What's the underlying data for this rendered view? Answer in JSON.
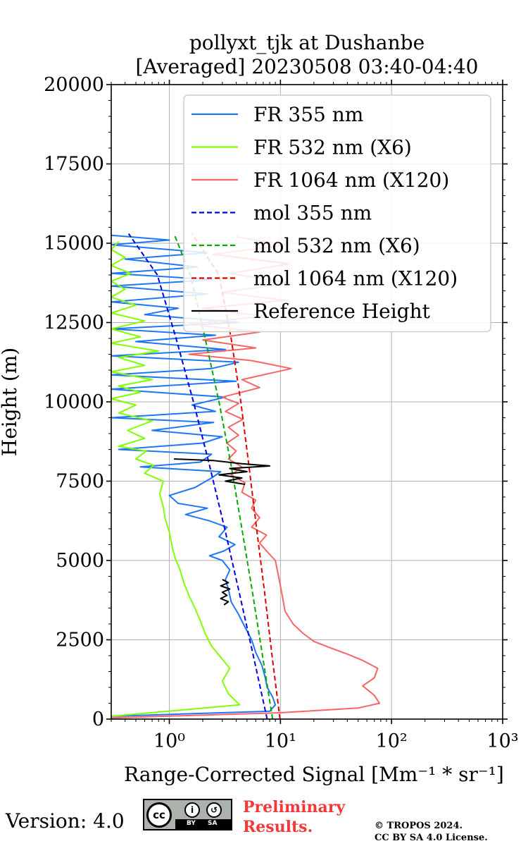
{
  "chart_data": {
    "type": "line",
    "title": [
      "pollyxt_tjk at Dushanbe",
      "[Averaged] 20230508 03:40-04:40"
    ],
    "xlabel": "Range-Corrected Signal [Mm⁻¹ * sr⁻¹]",
    "ylabel": "Height (m)",
    "xscale": "log",
    "xlim": [
      0.3,
      1000
    ],
    "ylim": [
      0,
      20000
    ],
    "xticks": [
      1,
      10,
      100,
      1000
    ],
    "xtick_labels": [
      "10⁰",
      "10¹",
      "10²",
      "10³"
    ],
    "yticks": [
      0,
      2500,
      5000,
      7500,
      10000,
      12500,
      15000,
      17500,
      20000
    ],
    "grid": true,
    "legend_position": "top-right",
    "series": [
      {
        "name": "FR 355 nm",
        "color": "#1f77f5",
        "style": "solid",
        "points": [
          [
            0.3,
            90
          ],
          [
            8,
            250
          ],
          [
            9,
            450
          ],
          [
            8.5,
            700
          ],
          [
            7.6,
            1000
          ],
          [
            7.3,
            1300
          ],
          [
            6.8,
            1700
          ],
          [
            6,
            2100
          ],
          [
            5.5,
            2500
          ],
          [
            4.8,
            2900
          ],
          [
            4.2,
            3300
          ],
          [
            3.6,
            3700
          ],
          [
            3.4,
            4100
          ],
          [
            3.2,
            4400
          ],
          [
            3.5,
            4700
          ],
          [
            3,
            5000
          ],
          [
            2.3,
            5150
          ],
          [
            3.1,
            5300
          ],
          [
            3.9,
            5500
          ],
          [
            2.8,
            5750
          ],
          [
            3.3,
            6050
          ],
          [
            2.3,
            6250
          ],
          [
            1.4,
            6450
          ],
          [
            2.2,
            6650
          ],
          [
            1.2,
            6800
          ],
          [
            1.0,
            7050
          ],
          [
            1.7,
            7300
          ],
          [
            2.4,
            7600
          ],
          [
            2.9,
            7800
          ],
          [
            0.55,
            7950
          ],
          [
            1.9,
            8100
          ],
          [
            2.4,
            8350
          ],
          [
            0.35,
            8500
          ],
          [
            2.0,
            8700
          ],
          [
            3.0,
            8900
          ],
          [
            0.7,
            9100
          ],
          [
            2.5,
            9350
          ],
          [
            0.3,
            9500
          ],
          [
            2.6,
            9700
          ],
          [
            1.6,
            9900
          ],
          [
            3.2,
            10150
          ],
          [
            0.3,
            10400
          ],
          [
            4.0,
            10650
          ],
          [
            0.3,
            10850
          ],
          [
            2.4,
            11050
          ],
          [
            4.2,
            11250
          ],
          [
            0.3,
            11450
          ],
          [
            3.2,
            11650
          ],
          [
            0.5,
            11900
          ],
          [
            2.6,
            12100
          ],
          [
            0.3,
            12300
          ],
          [
            4.2,
            12500
          ],
          [
            0.6,
            12750
          ],
          [
            1.2,
            12950
          ],
          [
            0.3,
            13150
          ],
          [
            2.2,
            13400
          ],
          [
            0.3,
            13650
          ],
          [
            2.5,
            13850
          ],
          [
            0.3,
            14050
          ],
          [
            1.8,
            14250
          ],
          [
            0.4,
            14500
          ],
          [
            2.2,
            14700
          ],
          [
            0.3,
            14950
          ],
          [
            1.0,
            15100
          ],
          [
            0.3,
            15250
          ]
        ]
      },
      {
        "name": "FR 532 nm (X6)",
        "color": "#7fff00",
        "style": "solid",
        "points": [
          [
            0.3,
            90
          ],
          [
            4.3,
            450
          ],
          [
            3.4,
            800
          ],
          [
            3.0,
            1200
          ],
          [
            3.5,
            1600
          ],
          [
            2.9,
            1950
          ],
          [
            2.4,
            2300
          ],
          [
            2.1,
            2700
          ],
          [
            1.9,
            3100
          ],
          [
            1.7,
            3500
          ],
          [
            1.5,
            3900
          ],
          [
            1.35,
            4300
          ],
          [
            1.25,
            4700
          ],
          [
            1.12,
            5100
          ],
          [
            1.05,
            5500
          ],
          [
            1.0,
            5900
          ],
          [
            0.92,
            6300
          ],
          [
            0.88,
            6700
          ],
          [
            0.82,
            7100
          ],
          [
            0.88,
            7500
          ],
          [
            0.6,
            7750
          ],
          [
            0.72,
            8000
          ],
          [
            0.5,
            8200
          ],
          [
            0.62,
            8450
          ],
          [
            0.35,
            8600
          ],
          [
            0.6,
            8850
          ],
          [
            0.42,
            9100
          ],
          [
            0.7,
            9400
          ],
          [
            0.35,
            9650
          ],
          [
            0.5,
            9900
          ],
          [
            0.3,
            10100
          ],
          [
            0.55,
            10300
          ],
          [
            0.35,
            10500
          ],
          [
            0.7,
            10700
          ],
          [
            0.3,
            10950
          ],
          [
            0.6,
            11150
          ],
          [
            0.35,
            11400
          ],
          [
            0.8,
            11600
          ],
          [
            0.3,
            11850
          ],
          [
            0.55,
            12050
          ],
          [
            0.3,
            12300
          ],
          [
            0.6,
            12550
          ],
          [
            0.3,
            12800
          ],
          [
            0.5,
            13050
          ],
          [
            0.3,
            13300
          ],
          [
            0.4,
            13550
          ],
          [
            0.3,
            13800
          ],
          [
            0.45,
            14050
          ],
          [
            0.3,
            14300
          ],
          [
            0.4,
            14550
          ],
          [
            0.3,
            14800
          ],
          [
            0.35,
            15050
          ]
        ]
      },
      {
        "name": "FR 1064 nm (X120)",
        "color": "#f76566",
        "style": "solid",
        "points": [
          [
            0.3,
            40
          ],
          [
            10,
            200
          ],
          [
            50,
            350
          ],
          [
            78,
            500
          ],
          [
            70,
            750
          ],
          [
            55,
            1050
          ],
          [
            70,
            1300
          ],
          [
            75,
            1600
          ],
          [
            55,
            1850
          ],
          [
            40,
            2050
          ],
          [
            28,
            2250
          ],
          [
            20,
            2450
          ],
          [
            16,
            2700
          ],
          [
            13,
            3000
          ],
          [
            11,
            3400
          ],
          [
            10.5,
            3800
          ],
          [
            10,
            4200
          ],
          [
            9.5,
            4600
          ],
          [
            9,
            5000
          ],
          [
            7.5,
            5300
          ],
          [
            6.5,
            5550
          ],
          [
            7.5,
            5800
          ],
          [
            5.5,
            6050
          ],
          [
            6.5,
            6350
          ],
          [
            5.5,
            6650
          ],
          [
            6.0,
            6900
          ],
          [
            4.5,
            7150
          ],
          [
            4.8,
            7450
          ],
          [
            3.6,
            7700
          ],
          [
            4.5,
            7950
          ],
          [
            3.4,
            8200
          ],
          [
            4.0,
            8450
          ],
          [
            3.3,
            8700
          ],
          [
            4.2,
            8950
          ],
          [
            3.4,
            9200
          ],
          [
            4.6,
            9450
          ],
          [
            3.2,
            9700
          ],
          [
            4.2,
            9950
          ],
          [
            3.0,
            10150
          ],
          [
            6.5,
            10450
          ],
          [
            4.5,
            10700
          ],
          [
            12.5,
            11050
          ],
          [
            5.5,
            11300
          ],
          [
            1.5,
            11500
          ],
          [
            6.0,
            11700
          ],
          [
            2.0,
            11950
          ],
          [
            6.5,
            12200
          ],
          [
            1.5,
            12450
          ],
          [
            7.0,
            12700
          ],
          [
            2.0,
            12950
          ],
          [
            11,
            13200
          ],
          [
            3.0,
            13450
          ],
          [
            12,
            13750
          ],
          [
            3.5,
            14050
          ],
          [
            12,
            14350
          ],
          [
            2.5,
            14650
          ],
          [
            11,
            14950
          ],
          [
            4.0,
            15200
          ]
        ]
      },
      {
        "name": "mol 355 nm",
        "color": "#0000dd",
        "style": "dashed",
        "points": [
          [
            7.6,
            0
          ],
          [
            5.7,
            2000
          ],
          [
            4.25,
            4000
          ],
          [
            3.15,
            6000
          ],
          [
            2.3,
            8000
          ],
          [
            1.65,
            10000
          ],
          [
            1.15,
            12000
          ],
          [
            0.78,
            14000
          ],
          [
            0.43,
            15300
          ]
        ]
      },
      {
        "name": "mol 532 nm (X6)",
        "color": "#00aa00",
        "style": "dashed",
        "points": [
          [
            8.5,
            0
          ],
          [
            6.9,
            2000
          ],
          [
            5.6,
            4000
          ],
          [
            4.5,
            6000
          ],
          [
            3.6,
            8000
          ],
          [
            2.8,
            10000
          ],
          [
            2.1,
            12000
          ],
          [
            1.55,
            14000
          ],
          [
            1.1,
            15300
          ]
        ]
      },
      {
        "name": "mol 1064 nm (X120)",
        "color": "#dd0000",
        "style": "dashed",
        "points": [
          [
            9.9,
            0
          ],
          [
            8.4,
            2000
          ],
          [
            7.2,
            4000
          ],
          [
            6.1,
            6000
          ],
          [
            5.2,
            8000
          ],
          [
            4.4,
            10000
          ],
          [
            3.6,
            12000
          ],
          [
            2.8,
            14000
          ],
          [
            1.6,
            15300
          ]
        ]
      },
      {
        "name": "Reference Height",
        "color": "#000000",
        "style": "solid",
        "points": [
          [
            1.1,
            8200
          ],
          [
            2.5,
            8150
          ],
          [
            4.5,
            8050
          ],
          [
            8.0,
            7980
          ],
          [
            3.5,
            7900
          ],
          [
            5.0,
            7800
          ],
          [
            2.8,
            7700
          ],
          [
            4.5,
            7600
          ],
          [
            3.2,
            7500
          ],
          [
            4.8,
            7400
          ]
        ],
        "points2": [
          [
            3.0,
            4400
          ],
          [
            3.4,
            4300
          ],
          [
            2.9,
            4200
          ],
          [
            3.5,
            4100
          ],
          [
            3.0,
            4000
          ],
          [
            3.3,
            3900
          ],
          [
            2.9,
            3800
          ],
          [
            3.4,
            3700
          ],
          [
            3.1,
            3600
          ]
        ]
      }
    ]
  },
  "footer": {
    "version": "Version: 4.0",
    "license_badge": {
      "cc": "cc",
      "by": "BY",
      "sa": "SA"
    },
    "preliminary": [
      "Preliminary",
      "Results."
    ],
    "copyright": [
      "© TROPOS 2024.",
      "CC BY SA 4.0 License."
    ]
  }
}
